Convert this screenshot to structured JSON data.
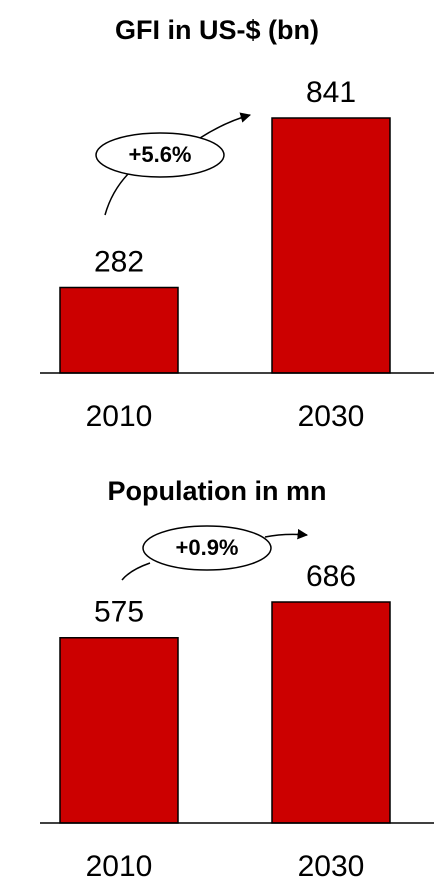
{
  "chart_data": [
    {
      "type": "bar",
      "title": "GFI in US-$ (bn)",
      "categories": [
        "2010",
        "2030"
      ],
      "values": [
        282,
        841
      ],
      "color": "#cc0000",
      "annotation": "+5.6%"
    },
    {
      "type": "bar",
      "title": "Population in mn",
      "categories": [
        "2010",
        "2030"
      ],
      "values": [
        575,
        686
      ],
      "color": "#cc0000",
      "annotation": "+0.9%"
    }
  ]
}
